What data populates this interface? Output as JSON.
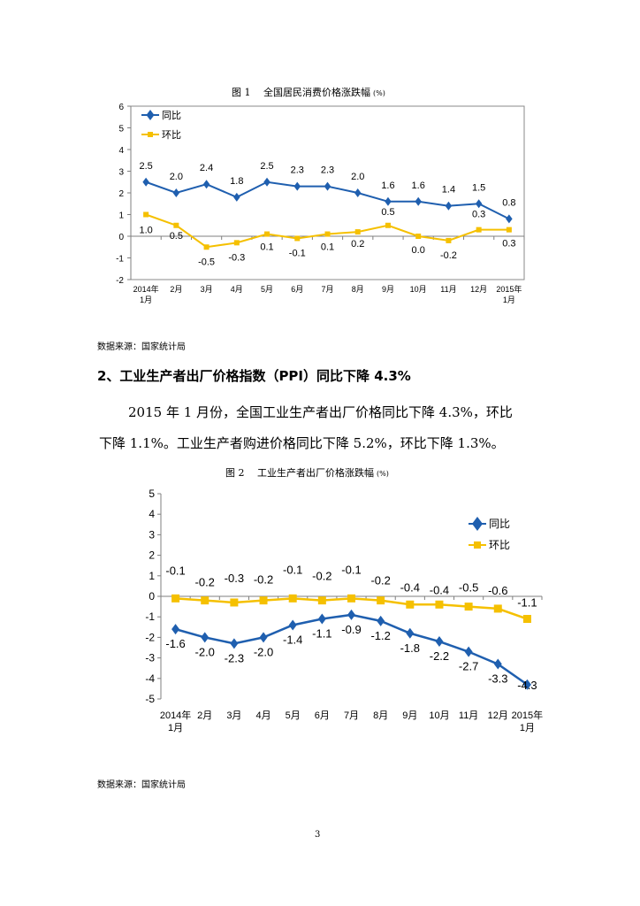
{
  "chart1_caption": "图 1　 全国居民消费价格涨跌幅",
  "chart1_unit": "(%)",
  "source1": "数据来源：国家统计局",
  "section_heading": "2、工业生产者出厂价格指数（PPI）同比下降 4.3%",
  "paragraph_line1": "2015 年 1 月份，全国工业生产者出厂价格同比下降 4.3%，环比",
  "paragraph_line2": "下降 1.1%。工业生产者购进价格同比下降 5.2%，环比下降 1.3%。",
  "chart2_caption": "图 2　 工业生产者出厂价格涨跌幅",
  "chart2_unit": "(%)",
  "source2": "数据来源：国家统计局",
  "page_number": "3",
  "colors": {
    "blue": "#1F5FAF",
    "yellow": "#F5C000"
  },
  "chart_data": [
    {
      "type": "line",
      "title": "全国居民消费价格涨跌幅 (%)",
      "categories": [
        "2014年\n1月",
        "2月",
        "3月",
        "4月",
        "5月",
        "6月",
        "7月",
        "8月",
        "9月",
        "10月",
        "11月",
        "12月",
        "2015年\n1月"
      ],
      "ylim": [
        -2,
        6
      ],
      "yticks": [
        -2,
        -1,
        0,
        1,
        2,
        3,
        4,
        5,
        6
      ],
      "legend_position": "top-left",
      "series": [
        {
          "name": "同比",
          "values": [
            2.5,
            2.0,
            2.4,
            1.8,
            2.5,
            2.3,
            2.3,
            2.0,
            1.6,
            1.6,
            1.4,
            1.5,
            0.8
          ],
          "labels": [
            "2.5",
            "2.0",
            "2.4",
            "1.8",
            "2.5",
            "2.3",
            "2.3",
            "2.0",
            "1.6",
            "1.6",
            "1.4",
            "1.5",
            "0.8"
          ]
        },
        {
          "name": "环比",
          "values": [
            1.0,
            0.5,
            -0.5,
            -0.3,
            0.1,
            -0.1,
            0.1,
            0.2,
            0.5,
            0.0,
            -0.2,
            0.3,
            0.3
          ],
          "labels": [
            "1.0",
            "0.5",
            "-0.5",
            "-0.3",
            "0.1",
            "-0.1",
            "0.1",
            "0.2",
            "0.5",
            "0.0",
            "-0.2",
            "0.3",
            "0.3"
          ]
        }
      ]
    },
    {
      "type": "line",
      "title": "工业生产者出厂价格涨跌幅 (%)",
      "categories": [
        "2014年\n1月",
        "2月",
        "3月",
        "4月",
        "5月",
        "6月",
        "7月",
        "8月",
        "9月",
        "10月",
        "11月",
        "12月",
        "2015年\n1月"
      ],
      "ylim": [
        -5,
        5
      ],
      "yticks": [
        -5,
        -4,
        -3,
        -2,
        -1,
        0,
        1,
        2,
        3,
        4,
        5
      ],
      "legend_position": "top-right",
      "series": [
        {
          "name": "同比",
          "values": [
            -1.6,
            -2.0,
            -2.3,
            -2.0,
            -1.4,
            -1.1,
            -0.9,
            -1.2,
            -1.8,
            -2.2,
            -2.7,
            -3.3,
            -4.3
          ],
          "labels": [
            "-1.6",
            "-2.0",
            "-2.3",
            "-2.0",
            "-1.4",
            "-1.1",
            "-0.9",
            "-1.2",
            "-1.8",
            "-2.2",
            "-2.7",
            "-3.3",
            "-4.3"
          ]
        },
        {
          "name": "环比",
          "values": [
            -0.1,
            -0.2,
            -0.3,
            -0.2,
            -0.1,
            -0.2,
            -0.1,
            -0.2,
            -0.4,
            -0.4,
            -0.5,
            -0.6,
            -1.1
          ],
          "labels": [
            "-0.1",
            "-0.2",
            "-0.3",
            "-0.2",
            "-0.1",
            "-0.2",
            "-0.1",
            "-0.2",
            "-0.4",
            "-0.4",
            "-0.5",
            "-0.6",
            "-1.1"
          ]
        }
      ]
    }
  ]
}
